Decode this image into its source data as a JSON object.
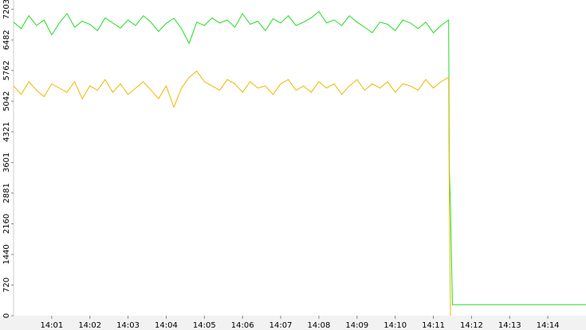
{
  "chart_data": {
    "type": "line",
    "x": [
      0,
      0.2,
      0.4,
      0.6,
      0.8,
      1,
      1.2,
      1.4,
      1.6,
      1.8,
      2,
      2.2,
      2.4,
      2.6,
      2.8,
      3,
      3.2,
      3.4,
      3.6,
      3.8,
      4,
      4.2,
      4.4,
      4.6,
      4.8,
      5,
      5.2,
      5.4,
      5.6,
      5.8,
      6,
      6.2,
      6.4,
      6.6,
      6.8,
      7,
      7.2,
      7.4,
      7.6,
      7.8,
      8,
      8.2,
      8.4,
      8.6,
      8.8,
      9,
      9.2,
      9.4,
      9.6,
      9.8,
      10,
      10.2,
      10.4,
      10.6,
      10.8,
      11,
      11.2,
      11.4,
      11.42,
      11.45,
      11.5,
      15
    ],
    "series": [
      {
        "color": "#22dd22",
        "values": [
          6900,
          6750,
          7050,
          6820,
          6950,
          6600,
          6880,
          7100,
          6780,
          6920,
          6850,
          6700,
          7000,
          6880,
          6760,
          6950,
          6820,
          7050,
          6900,
          6680,
          6870,
          6990,
          6750,
          6400,
          6900,
          6820,
          7000,
          6880,
          6950,
          6780,
          7100,
          6850,
          6920,
          6700,
          6980,
          6880,
          7050,
          6820,
          6900,
          7000,
          7150,
          6880,
          6950,
          6820,
          7050,
          6900,
          6780,
          6650,
          6900,
          6850,
          6700,
          6950,
          6880,
          6750,
          6900,
          6650,
          6820,
          6950,
          3400,
          2500,
          260,
          260
        ]
      },
      {
        "color": "#f0b800",
        "values": [
          5400,
          5200,
          5500,
          5300,
          5150,
          5450,
          5350,
          5250,
          5500,
          5100,
          5400,
          5300,
          5550,
          5250,
          5450,
          5200,
          5350,
          5500,
          5300,
          5100,
          5400,
          4900,
          5350,
          5600,
          5750,
          5500,
          5400,
          5300,
          5550,
          5450,
          5250,
          5500,
          5350,
          5400,
          5200,
          5450,
          5550,
          5300,
          5400,
          5250,
          5500,
          5350,
          5450,
          5200,
          5400,
          5550,
          5300,
          5450,
          5350,
          5500,
          5250,
          5450,
          5400,
          5300,
          5550,
          5350,
          5500,
          5600,
          2500,
          0,
          null,
          null
        ]
      }
    ],
    "xlim": [
      0,
      15
    ],
    "xticks": [
      {
        "value": 1,
        "label": "14:01"
      },
      {
        "value": 2,
        "label": "14:02"
      },
      {
        "value": 3,
        "label": "14:03"
      },
      {
        "value": 4,
        "label": "14:04"
      },
      {
        "value": 5,
        "label": "14:05"
      },
      {
        "value": 6,
        "label": "14:06"
      },
      {
        "value": 7,
        "label": "14:07"
      },
      {
        "value": 8,
        "label": "14:08"
      },
      {
        "value": 9,
        "label": "14:09"
      },
      {
        "value": 10,
        "label": "14:10"
      },
      {
        "value": 11,
        "label": "14:11"
      },
      {
        "value": 12,
        "label": "14:12"
      },
      {
        "value": 13,
        "label": "14:13"
      },
      {
        "value": 14,
        "label": "14:14"
      }
    ],
    "ylim": [
      0,
      7420
    ],
    "yticks": [
      0,
      720,
      1440,
      2160,
      2881,
      3601,
      4321,
      5042,
      5762,
      6482,
      7203
    ]
  }
}
